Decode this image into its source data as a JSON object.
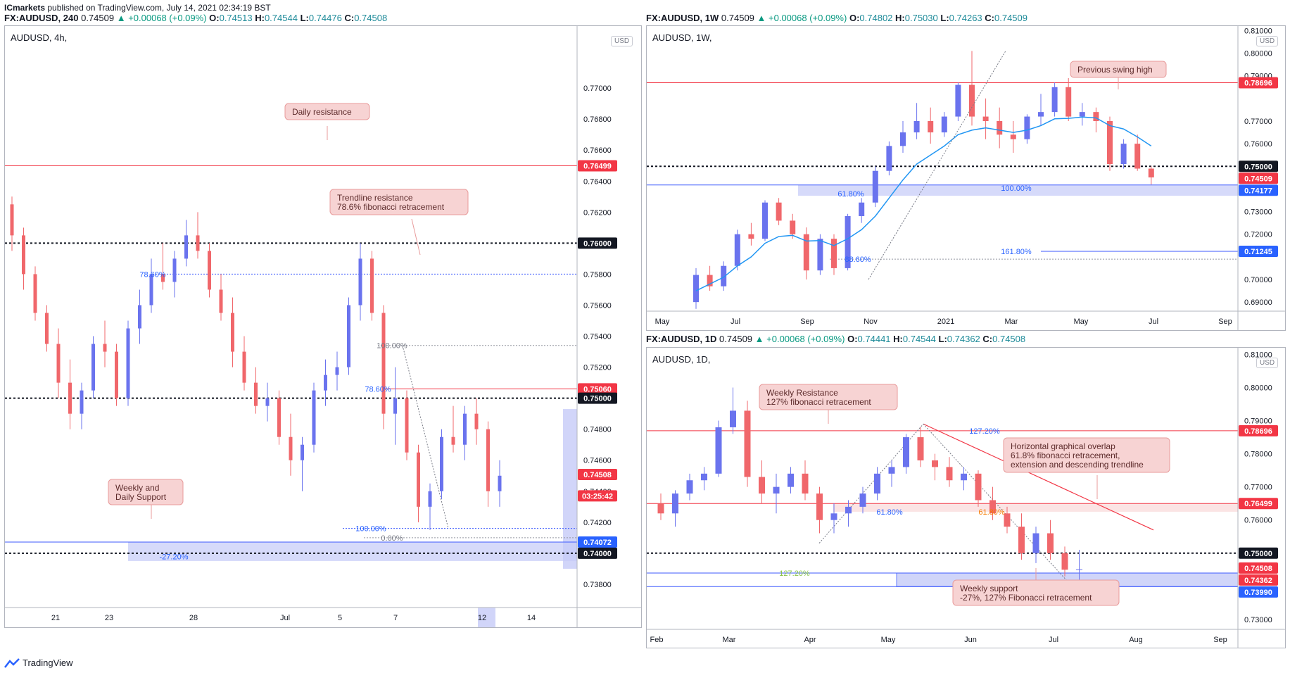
{
  "publisher": {
    "name": "ICmarkets",
    "text": " published on TradingView.com, July 14, 2021 02:34:19 BST"
  },
  "footer": {
    "brand": "TradingView"
  },
  "colors": {
    "bull": "#6a73ee",
    "bear": "#f0676b",
    "ema": "#2196f3",
    "resistance": "#f23645",
    "support": "#3d5afe",
    "zone": "#c5cbf8"
  },
  "panels": [
    {
      "id": "h4",
      "header": {
        "symbol": "FX:AUDUSD, 240",
        "price": "0.74509",
        "change": "▲ +0.00068 (+0.09%)",
        "o_label": "O:",
        "o": "0.74513",
        "h_label": "H:",
        "h": "0.74544",
        "l_label": "L:",
        "l": "0.74476",
        "c_label": "C:",
        "c": "0.74508"
      },
      "title": "AUDUSD, 4h,",
      "currency": "USD",
      "ticks": [
        "0.77000",
        "0.76800",
        "0.76600",
        "0.76400",
        "0.76200",
        "0.75800",
        "0.75600",
        "0.75400",
        "0.75200",
        "0.74800",
        "0.74600",
        "0.74400",
        "0.74200",
        "0.73800"
      ],
      "xlabels": [
        "21",
        "23",
        "28",
        "Jul",
        "5",
        "7",
        "12",
        "14"
      ],
      "price_tags": [
        {
          "text": "0.76499",
          "kind": "red"
        },
        {
          "text": "0.76000",
          "kind": "black"
        },
        {
          "text": "0.75060",
          "kind": "red"
        },
        {
          "text": "0.75000",
          "kind": "black"
        },
        {
          "text": "0.74508",
          "kind": "red"
        },
        {
          "text": "03:25:42",
          "kind": "red"
        },
        {
          "text": "0.74072",
          "kind": "blue"
        },
        {
          "text": "0.74000",
          "kind": "black"
        }
      ],
      "fib_labels": [
        "78.60%",
        "100.00%",
        "78.60%",
        "100.00%",
        "0.00%",
        "-27.20%"
      ],
      "annotations": [
        {
          "text": [
            "Daily resistance"
          ]
        },
        {
          "text": [
            "Trendline resistance",
            "78.6% fibonacci retracement"
          ]
        },
        {
          "text": [
            "Weekly and",
            "Daily Support"
          ]
        }
      ]
    },
    {
      "id": "w1",
      "header": {
        "symbol": "FX:AUDUSD, 1W",
        "price": "0.74509",
        "change": "▲ +0.00068 (+0.09%)",
        "o_label": "O:",
        "o": "0.74802",
        "h_label": "H:",
        "h": "0.75030",
        "l_label": "L:",
        "l": "0.74263",
        "c_label": "C:",
        "c": "0.74509"
      },
      "title": "AUDUSD, 1W,",
      "currency": "USD",
      "ticks": [
        "0.81000",
        "0.80000",
        "0.79000",
        "0.77000",
        "0.76000",
        "0.73000",
        "0.72000",
        "0.70000",
        "0.69000"
      ],
      "xlabels": [
        "May",
        "Jul",
        "Sep",
        "Nov",
        "2021",
        "Mar",
        "May",
        "Jul",
        "Sep"
      ],
      "price_tags": [
        {
          "text": "0.78696",
          "kind": "red"
        },
        {
          "text": "0.75000",
          "kind": "black"
        },
        {
          "text": "0.74509",
          "kind": "red"
        },
        {
          "text": "0.74177",
          "kind": "blue"
        },
        {
          "text": "0.71245",
          "kind": "blue"
        }
      ],
      "fib_labels": [
        "61.80%",
        "100.00%",
        "88.60%",
        "161.80%"
      ],
      "annotations": [
        {
          "text": [
            "Previous swing high"
          ]
        }
      ]
    },
    {
      "id": "d1",
      "header": {
        "symbol": "FX:AUDUSD, 1D",
        "price": "0.74509",
        "change": "▲ +0.00068 (+0.09%)",
        "o_label": "O:",
        "o": "0.74441",
        "h_label": "H:",
        "h": "0.74544",
        "l_label": "L:",
        "l": "0.74362",
        "c_label": "C:",
        "c": "0.74508"
      },
      "title": "AUDUSD, 1D,",
      "currency": "USD",
      "ticks": [
        "0.81000",
        "0.80000",
        "0.79000",
        "0.78000",
        "0.77000",
        "0.76000",
        "0.73000"
      ],
      "xlabels": [
        "Feb",
        "Mar",
        "Apr",
        "May",
        "Jun",
        "Jul",
        "Aug",
        "Sep"
      ],
      "price_tags": [
        {
          "text": "0.78696",
          "kind": "red"
        },
        {
          "text": "0.76499",
          "kind": "red"
        },
        {
          "text": "0.75000",
          "kind": "black"
        },
        {
          "text": "0.74508",
          "kind": "red"
        },
        {
          "text": "0.74362",
          "kind": "red"
        },
        {
          "text": "0.73990",
          "kind": "blue"
        }
      ],
      "fib_labels": [
        "127.20%",
        "61.80%",
        "61.80%",
        "127.20%"
      ],
      "annotations": [
        {
          "text": [
            "Weekly Resistance",
            "127% fibonacci retracement"
          ]
        },
        {
          "text": [
            "Horizontal graphical overlap",
            "61.8% fibonacci retracement,",
            "extension and descending trendline"
          ]
        },
        {
          "text": [
            "Weekly support",
            "-27%, 127% Fibonacci retracement"
          ]
        }
      ]
    }
  ],
  "chart_data": [
    {
      "type": "candlestick",
      "title": "AUDUSD, 4h,",
      "ylim": [
        0.7365,
        0.774
      ],
      "horizontal_levels": [
        0.76499,
        0.76,
        0.758,
        0.7506,
        0.75,
        0.74072,
        0.74
      ],
      "last_price": 0.74508,
      "series": [
        {
          "ohlc": [
            [
              0.7625,
              0.763,
              0.7595,
              0.7605
            ],
            [
              0.7605,
              0.761,
              0.757,
              0.758
            ],
            [
              0.758,
              0.7585,
              0.755,
              0.7555
            ],
            [
              0.7555,
              0.756,
              0.753,
              0.7535
            ],
            [
              0.7535,
              0.7545,
              0.75,
              0.751
            ],
            [
              0.751,
              0.7525,
              0.748,
              0.749
            ],
            [
              0.749,
              0.751,
              0.748,
              0.7505
            ],
            [
              0.7505,
              0.754,
              0.75,
              0.7535
            ],
            [
              0.7535,
              0.755,
              0.752,
              0.753
            ],
            [
              0.753,
              0.7535,
              0.7495,
              0.75
            ],
            [
              0.75,
              0.755,
              0.7495,
              0.7545
            ],
            [
              0.7545,
              0.757,
              0.7535,
              0.756
            ],
            [
              0.756,
              0.759,
              0.7555,
              0.758
            ],
            [
              0.758,
              0.76,
              0.757,
              0.7575
            ],
            [
              0.7575,
              0.7595,
              0.7565,
              0.759
            ],
            [
              0.759,
              0.7615,
              0.7585,
              0.7605
            ],
            [
              0.7605,
              0.762,
              0.759,
              0.7595
            ],
            [
              0.7595,
              0.76,
              0.7565,
              0.757
            ],
            [
              0.757,
              0.758,
              0.755,
              0.7555
            ],
            [
              0.7555,
              0.7565,
              0.752,
              0.753
            ],
            [
              0.753,
              0.754,
              0.7505,
              0.751
            ],
            [
              0.751,
              0.752,
              0.749,
              0.7495
            ],
            [
              0.7495,
              0.751,
              0.7485,
              0.75
            ],
            [
              0.75,
              0.7505,
              0.747,
              0.7475
            ],
            [
              0.7475,
              0.749,
              0.745,
              0.746
            ],
            [
              0.746,
              0.7475,
              0.744,
              0.747
            ],
            [
              0.747,
              0.751,
              0.7465,
              0.7505
            ],
            [
              0.7505,
              0.7525,
              0.7495,
              0.7515
            ],
            [
              0.7515,
              0.753,
              0.7505,
              0.752
            ],
            [
              0.752,
              0.7565,
              0.7515,
              0.756
            ],
            [
              0.756,
              0.76,
              0.755,
              0.759
            ],
            [
              0.759,
              0.7595,
              0.755,
              0.7555
            ],
            [
              0.7555,
              0.756,
              0.748,
              0.749
            ],
            [
              0.749,
              0.752,
              0.747,
              0.75
            ],
            [
              0.75,
              0.7505,
              0.746,
              0.7465
            ],
            [
              0.7465,
              0.747,
              0.742,
              0.743
            ],
            [
              0.743,
              0.7445,
              0.7415,
              0.744
            ],
            [
              0.744,
              0.748,
              0.7435,
              0.7475
            ],
            [
              0.7475,
              0.7495,
              0.7465,
              0.747
            ],
            [
              0.747,
              0.7495,
              0.746,
              0.749
            ],
            [
              0.749,
              0.75,
              0.747,
              0.748
            ],
            [
              0.748,
              0.7485,
              0.743,
              0.744
            ],
            [
              0.744,
              0.746,
              0.743,
              0.745
            ]
          ]
        }
      ]
    },
    {
      "type": "candlestick",
      "title": "AUDUSD, 1W,",
      "ylim": [
        0.686,
        0.812
      ],
      "horizontal_levels": [
        0.78696,
        0.75,
        0.74177,
        0.71245
      ],
      "last_price": 0.74509,
      "series": [
        {
          "ohlc": [
            [
              0.69,
              0.705,
              0.687,
              0.702
            ],
            [
              0.702,
              0.706,
              0.695,
              0.697
            ],
            [
              0.697,
              0.708,
              0.695,
              0.706
            ],
            [
              0.706,
              0.722,
              0.704,
              0.72
            ],
            [
              0.72,
              0.725,
              0.715,
              0.718
            ],
            [
              0.718,
              0.735,
              0.717,
              0.734
            ],
            [
              0.734,
              0.736,
              0.724,
              0.726
            ],
            [
              0.726,
              0.729,
              0.718,
              0.72
            ],
            [
              0.72,
              0.723,
              0.7,
              0.704
            ],
            [
              0.704,
              0.72,
              0.702,
              0.718
            ],
            [
              0.718,
              0.72,
              0.702,
              0.705
            ],
            [
              0.705,
              0.729,
              0.704,
              0.728
            ],
            [
              0.728,
              0.736,
              0.725,
              0.734
            ],
            [
              0.734,
              0.75,
              0.732,
              0.748
            ],
            [
              0.748,
              0.761,
              0.746,
              0.759
            ],
            [
              0.759,
              0.77,
              0.756,
              0.765
            ],
            [
              0.765,
              0.778,
              0.762,
              0.77
            ],
            [
              0.77,
              0.776,
              0.76,
              0.765
            ],
            [
              0.765,
              0.774,
              0.763,
              0.772
            ],
            [
              0.772,
              0.787,
              0.77,
              0.786
            ],
            [
              0.786,
              0.801,
              0.768,
              0.772
            ],
            [
              0.772,
              0.78,
              0.762,
              0.77
            ],
            [
              0.77,
              0.776,
              0.758,
              0.764
            ],
            [
              0.764,
              0.77,
              0.756,
              0.762
            ],
            [
              0.762,
              0.773,
              0.76,
              0.772
            ],
            [
              0.772,
              0.782,
              0.768,
              0.774
            ],
            [
              0.774,
              0.787,
              0.772,
              0.785
            ],
            [
              0.785,
              0.789,
              0.77,
              0.772
            ],
            [
              0.772,
              0.778,
              0.768,
              0.774
            ],
            [
              0.774,
              0.776,
              0.765,
              0.77
            ],
            [
              0.77,
              0.772,
              0.748,
              0.751
            ],
            [
              0.751,
              0.762,
              0.749,
              0.76
            ],
            [
              0.76,
              0.764,
              0.748,
              0.749
            ],
            [
              0.749,
              0.75,
              0.742,
              0.7451
            ]
          ]
        },
        {
          "name": "",
          "values": [
            0.695,
            0.698,
            0.701,
            0.706,
            0.71,
            0.716,
            0.719,
            0.7195,
            0.717,
            0.7172,
            0.715,
            0.718,
            0.722,
            0.728,
            0.736,
            0.744,
            0.751,
            0.755,
            0.759,
            0.764,
            0.766,
            0.767,
            0.766,
            0.765,
            0.766,
            0.768,
            0.771,
            0.7712,
            0.7718,
            0.7714,
            0.768,
            0.7665,
            0.763,
            0.759
          ]
        }
      ]
    },
    {
      "type": "candlestick",
      "title": "AUDUSD, 1D,",
      "ylim": [
        0.727,
        0.812
      ],
      "horizontal_levels": [
        0.78696,
        0.76499,
        0.75,
        0.74,
        0.7399
      ],
      "last_price": 0.74508,
      "series": [
        {
          "ohlc": [
            [
              0.765,
              0.768,
              0.76,
              0.762
            ],
            [
              0.762,
              0.769,
              0.758,
              0.768
            ],
            [
              0.768,
              0.774,
              0.766,
              0.772
            ],
            [
              0.772,
              0.776,
              0.769,
              0.774
            ],
            [
              0.774,
              0.79,
              0.773,
              0.788
            ],
            [
              0.788,
              0.8,
              0.786,
              0.793
            ],
            [
              0.793,
              0.796,
              0.77,
              0.773
            ],
            [
              0.773,
              0.778,
              0.765,
              0.768
            ],
            [
              0.768,
              0.774,
              0.762,
              0.77
            ],
            [
              0.77,
              0.776,
              0.768,
              0.774
            ],
            [
              0.774,
              0.778,
              0.766,
              0.768
            ],
            [
              0.768,
              0.77,
              0.756,
              0.76
            ],
            [
              0.76,
              0.765,
              0.756,
              0.762
            ],
            [
              0.762,
              0.766,
              0.758,
              0.764
            ],
            [
              0.764,
              0.77,
              0.762,
              0.768
            ],
            [
              0.768,
              0.776,
              0.766,
              0.774
            ],
            [
              0.774,
              0.778,
              0.77,
              0.776
            ],
            [
              0.776,
              0.786,
              0.774,
              0.785
            ],
            [
              0.785,
              0.788,
              0.776,
              0.778
            ],
            [
              0.778,
              0.78,
              0.772,
              0.776
            ],
            [
              0.776,
              0.779,
              0.77,
              0.772
            ],
            [
              0.772,
              0.776,
              0.769,
              0.774
            ],
            [
              0.774,
              0.775,
              0.764,
              0.766
            ],
            [
              0.766,
              0.77,
              0.76,
              0.762
            ],
            [
              0.762,
              0.764,
              0.756,
              0.758
            ],
            [
              0.758,
              0.762,
              0.748,
              0.75
            ],
            [
              0.75,
              0.758,
              0.747,
              0.756
            ],
            [
              0.756,
              0.76,
              0.748,
              0.75
            ],
            [
              0.75,
              0.752,
              0.743,
              0.745
            ],
            [
              0.745,
              0.751,
              0.742,
              0.7451
            ]
          ]
        }
      ]
    }
  ]
}
